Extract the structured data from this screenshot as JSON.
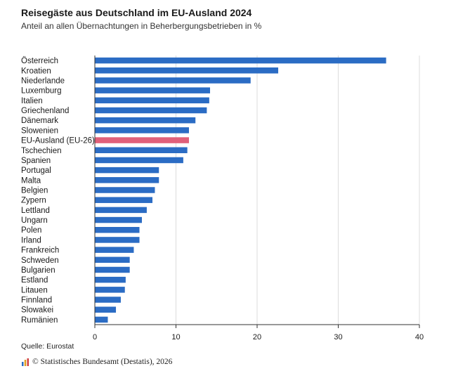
{
  "chart_data": {
    "type": "bar",
    "orientation": "horizontal",
    "title": "Reisegäste aus Deutschland im EU-Ausland 2024",
    "subtitle": "Anteil an allen Übernachtungen in Beherbergungsbetrieben in %",
    "categories": [
      "Österreich",
      "Kroatien",
      "Niederlande",
      "Luxemburg",
      "Italien",
      "Griechenland",
      "Dänemark",
      "Slowenien",
      "EU-Ausland (EU-26)",
      "Tschechien",
      "Spanien",
      "Portugal",
      "Malta",
      "Belgien",
      "Zypern",
      "Lettland",
      "Ungarn",
      "Polen",
      "Irland",
      "Frankreich",
      "Schweden",
      "Bulgarien",
      "Estland",
      "Litauen",
      "Finnland",
      "Slowakei",
      "Rumänien"
    ],
    "values": [
      35.9,
      22.6,
      19.2,
      14.2,
      14.1,
      13.8,
      12.4,
      11.6,
      11.6,
      11.4,
      10.9,
      7.9,
      7.9,
      7.4,
      7.1,
      6.4,
      5.8,
      5.5,
      5.5,
      4.8,
      4.3,
      4.3,
      3.8,
      3.7,
      3.2,
      2.6,
      1.6
    ],
    "highlight": "EU-Ausland (EU-26)",
    "xlim": [
      0,
      40
    ],
    "xticks": [
      0,
      10,
      20,
      30,
      40
    ],
    "grid": true,
    "colors": {
      "bar": "#2b6cc4",
      "highlight": "#e0607a",
      "grid": "#dcdcdc",
      "axis": "#333333"
    }
  },
  "source": "Quelle: Eurostat",
  "footer": "© Statistisches Bundesamt (Destatis), 2026"
}
